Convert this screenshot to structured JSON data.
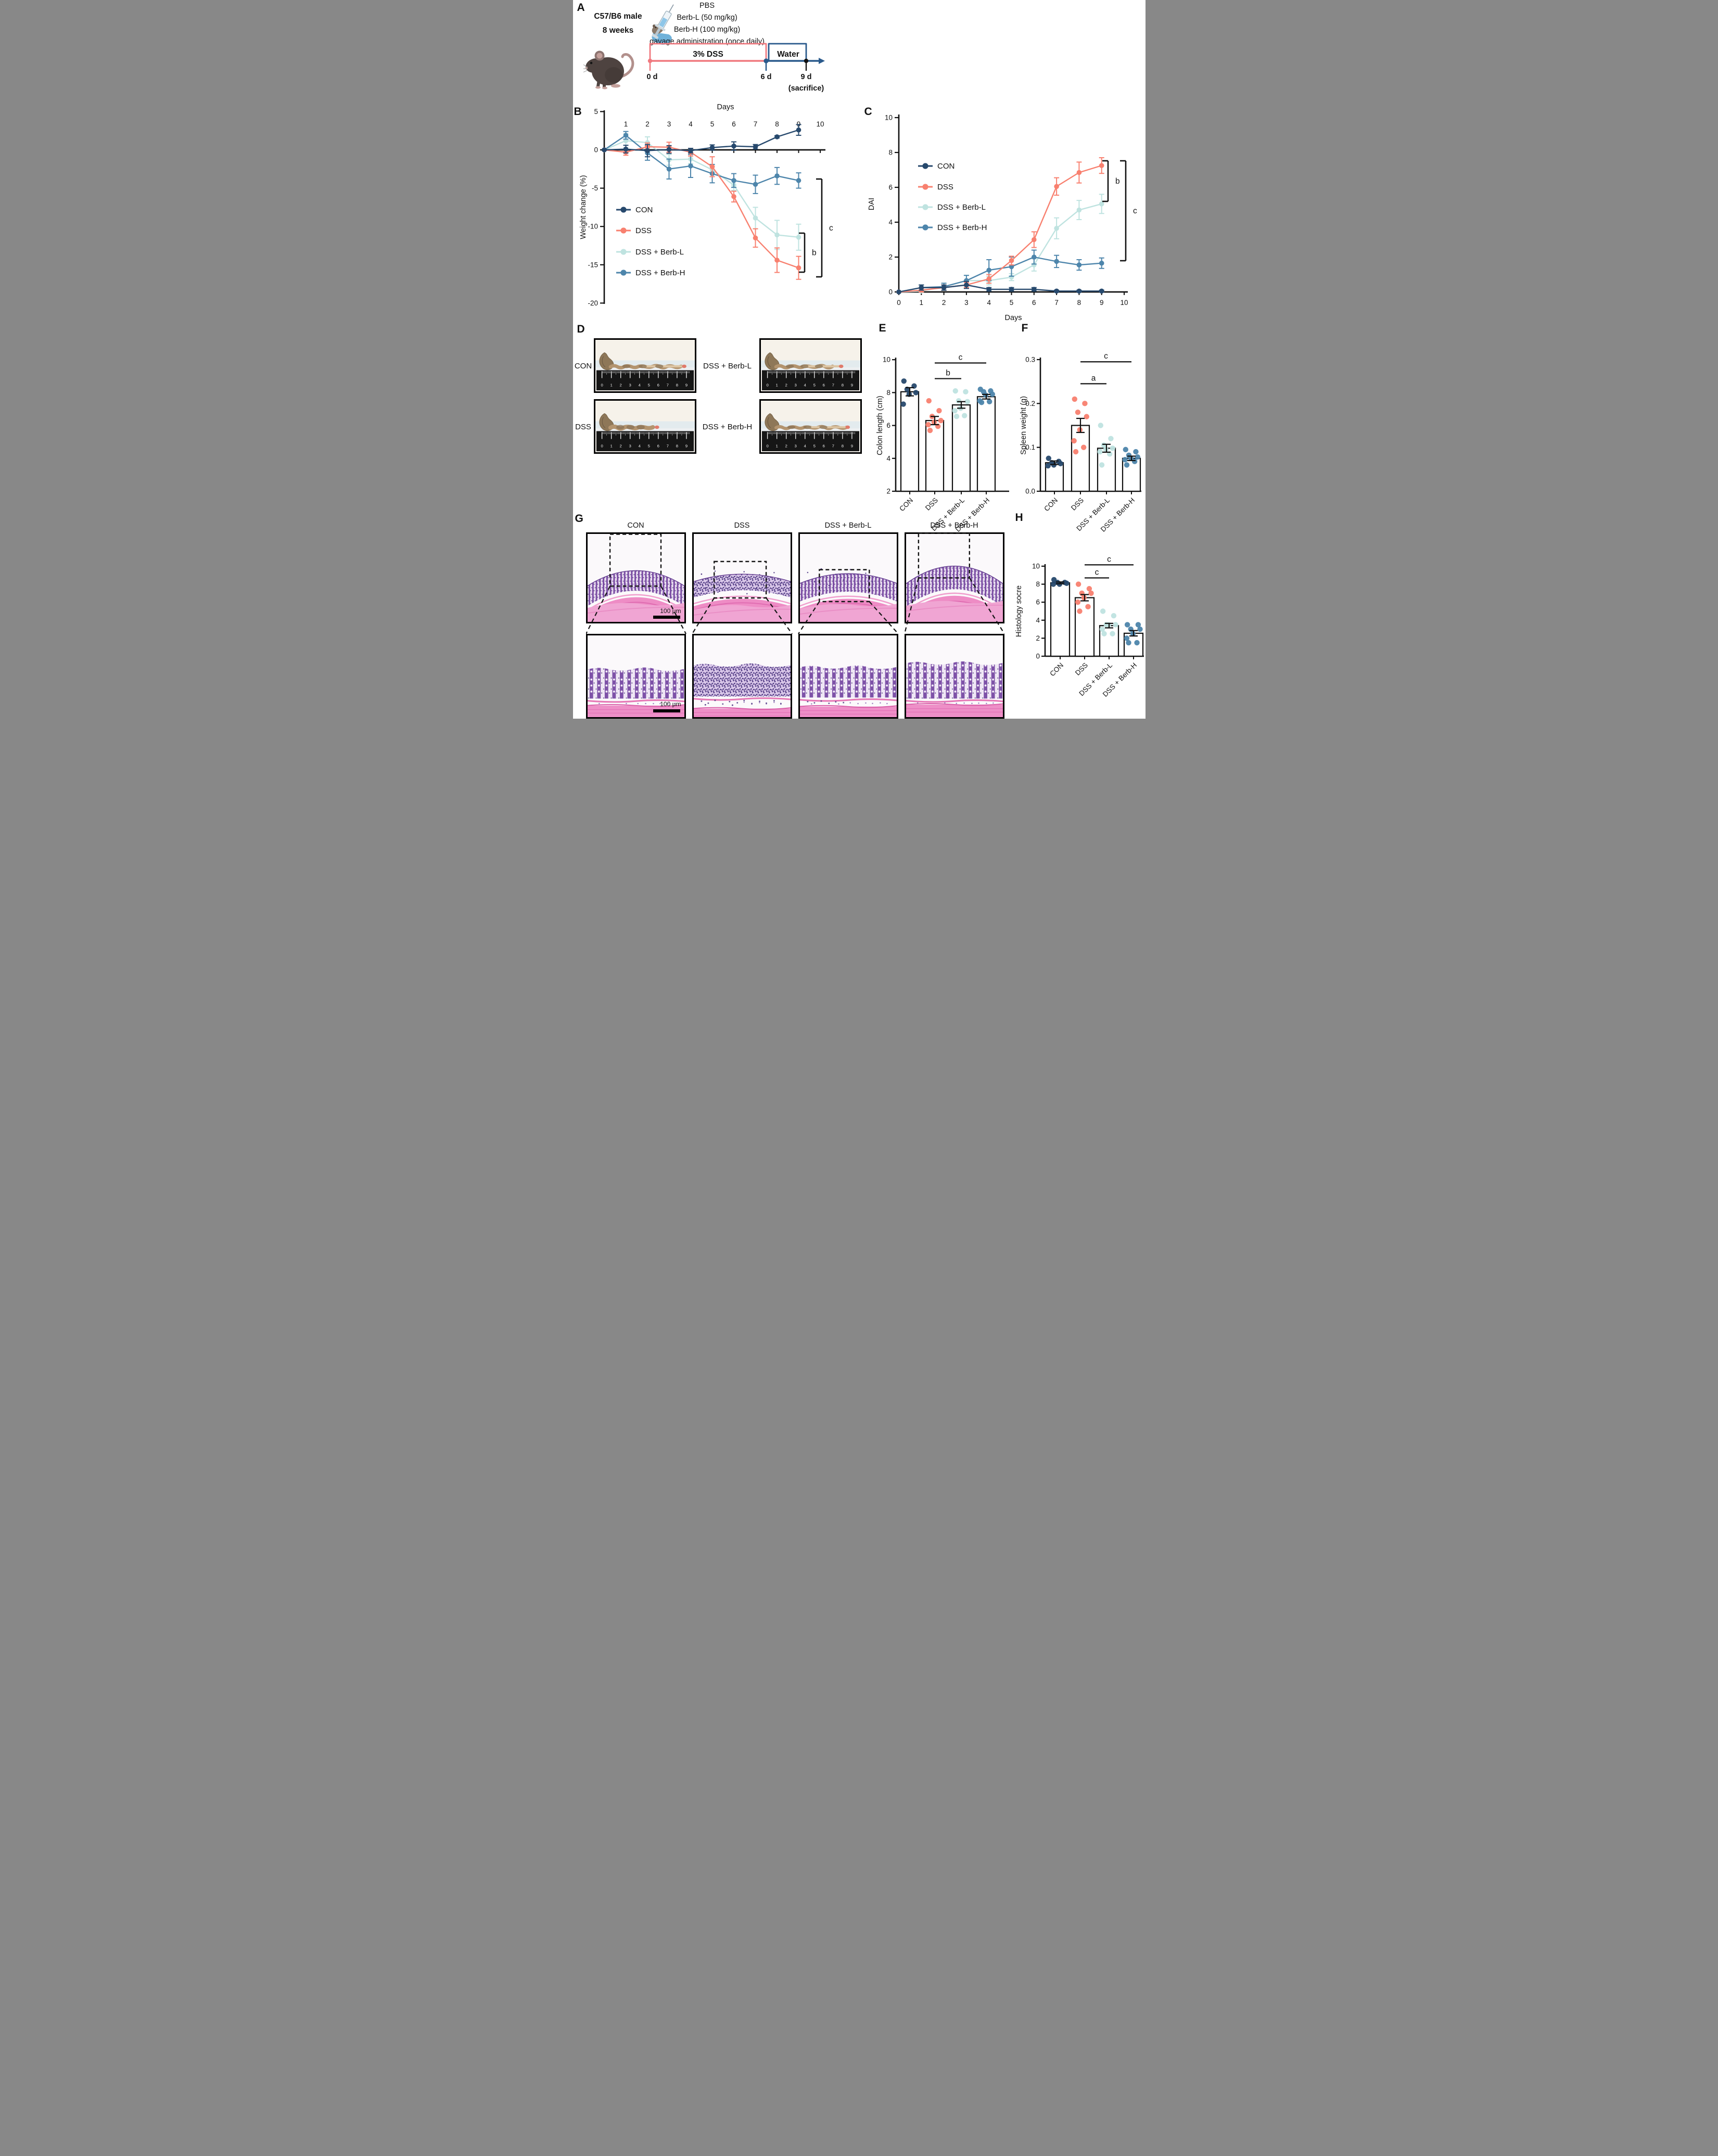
{
  "figure": {
    "panel_labels": {
      "A": "A",
      "B": "B",
      "C": "C",
      "D": "D",
      "E": "E",
      "F": "F",
      "G": "G",
      "H": "H"
    }
  },
  "groups": [
    {
      "name": "CON",
      "color": "#27496d"
    },
    {
      "name": "DSS",
      "color": "#f8806f"
    },
    {
      "name": "DSS + Berb-L",
      "color": "#bfe3e0"
    },
    {
      "name": "DSS + Berb-H",
      "color": "#4d85ab"
    }
  ],
  "panelA": {
    "label": "A",
    "subject_line1": "C57/B6 male",
    "subject_line2": "8 weeks",
    "treatment_lines": [
      "PBS",
      "Berb-L (50 mg/kg)",
      "Berb-H (100 mg/kg)",
      "gavage administration (once daily)"
    ],
    "dss_phase": "3% DSS",
    "water_phase": "Water",
    "t0": "0 d",
    "t6": "6 d",
    "t9": "9 d",
    "sacrifice": "(sacrifice)",
    "dss_color": "#f0797f",
    "water_color": "#2a5a8c"
  },
  "chart_data": [
    {
      "id": "B",
      "type": "line",
      "title": "Days",
      "ylabel": "Weight change (%)",
      "xticks": [
        1,
        2,
        3,
        4,
        5,
        6,
        7,
        8,
        9,
        10
      ],
      "yticks": [
        5,
        0,
        -5,
        -10,
        -15,
        -20
      ],
      "ylim": [
        -20,
        5
      ],
      "x": [
        0,
        1,
        2,
        3,
        4,
        5,
        6,
        7,
        8,
        9
      ],
      "series": [
        {
          "name": "CON",
          "color": "#27496d",
          "values": [
            0,
            0.1,
            -0.1,
            0.05,
            -0.1,
            0.3,
            0.5,
            0.4,
            1.7,
            2.6
          ],
          "err": [
            0.05,
            0.5,
            0.8,
            0.5,
            0.3,
            0.35,
            0.55,
            0.3,
            0.15,
            0.7
          ]
        },
        {
          "name": "DSS",
          "color": "#f8806f",
          "values": [
            0,
            -0.3,
            0.4,
            0.35,
            -0.3,
            -2.2,
            -6.1,
            -11.5,
            -14.4,
            -15.4
          ],
          "err": [
            0.05,
            0.4,
            0.5,
            0.65,
            0.5,
            1.3,
            0.7,
            1.2,
            1.6,
            1.5
          ]
        },
        {
          "name": "DSS + Berb-L",
          "color": "#bfe3e0",
          "values": [
            0,
            1.2,
            0.95,
            -1.3,
            -1.2,
            -2.6,
            -4.6,
            -8.9,
            -11.1,
            -11.4
          ],
          "err": [
            0.05,
            0.9,
            0.75,
            0.7,
            0.6,
            0.5,
            0.7,
            1.4,
            1.9,
            1.7
          ]
        },
        {
          "name": "DSS + Berb-H",
          "color": "#4d85ab",
          "values": [
            0,
            1.9,
            -0.4,
            -2.5,
            -2.1,
            -3.1,
            -4.0,
            -4.5,
            -3.4,
            -4.0
          ],
          "err": [
            0.05,
            0.5,
            0.95,
            1.3,
            1.5,
            1.2,
            0.9,
            1.2,
            1.1,
            1.0
          ]
        }
      ],
      "sig": [
        {
          "label": "b"
        },
        {
          "label": "c"
        }
      ]
    },
    {
      "id": "C",
      "type": "line",
      "xlabel": "Days",
      "ylabel": "DAI",
      "xticks": [
        0,
        1,
        2,
        3,
        4,
        5,
        6,
        7,
        8,
        9,
        10
      ],
      "yticks": [
        0,
        2,
        4,
        6,
        8,
        10
      ],
      "ylim": [
        0,
        10
      ],
      "x": [
        0,
        1,
        2,
        3,
        4,
        5,
        6,
        7,
        8,
        9
      ],
      "series": [
        {
          "name": "CON",
          "color": "#27496d",
          "values": [
            0,
            0.25,
            0.25,
            0.4,
            0.15,
            0.15,
            0.15,
            0.05,
            0.05,
            0.05
          ],
          "err": [
            0,
            0.15,
            0.15,
            0.2,
            0.1,
            0.1,
            0.1,
            0.05,
            0.05,
            0.05
          ]
        },
        {
          "name": "DSS",
          "color": "#f8806f",
          "values": [
            0,
            0.1,
            0.25,
            0.4,
            0.75,
            1.8,
            3.0,
            6.05,
            6.85,
            7.25
          ],
          "err": [
            0,
            0.1,
            0.15,
            0.15,
            0.25,
            0.25,
            0.45,
            0.5,
            0.6,
            0.45
          ]
        },
        {
          "name": "DSS + Berb-L",
          "color": "#bfe3e0",
          "values": [
            0,
            0.05,
            0.3,
            0.65,
            0.65,
            0.85,
            1.55,
            3.65,
            4.7,
            5.05
          ],
          "err": [
            0,
            0.05,
            0.2,
            0.3,
            0.25,
            0.2,
            0.35,
            0.6,
            0.55,
            0.55
          ]
        },
        {
          "name": "DSS + Berb-H",
          "color": "#4d85ab",
          "values": [
            0,
            0.25,
            0.3,
            0.65,
            1.25,
            1.45,
            2.0,
            1.75,
            1.55,
            1.65
          ],
          "err": [
            0,
            0.15,
            0.2,
            0.3,
            0.6,
            0.55,
            0.4,
            0.35,
            0.3,
            0.3
          ]
        }
      ],
      "sig": [
        {
          "label": "b"
        },
        {
          "label": "c"
        }
      ]
    },
    {
      "id": "E",
      "type": "bar",
      "ylabel": "Colon length (cm)",
      "ylim": [
        2,
        10
      ],
      "yticks": [
        2,
        4,
        6,
        8,
        10
      ],
      "categories": [
        "CON",
        "DSS",
        "DSS + Berb-L",
        "DSS + Berb-H"
      ],
      "colors": [
        "#27496d",
        "#f8806f",
        "#bfe3e0",
        "#4d85ab"
      ],
      "means": [
        8.05,
        6.3,
        7.25,
        7.75
      ],
      "sem": [
        0.25,
        0.25,
        0.2,
        0.14
      ],
      "points": [
        [
          8.7,
          8.4,
          8.2,
          8.0,
          7.9,
          7.3
        ],
        [
          7.5,
          6.9,
          6.55,
          6.3,
          6.2,
          6.05,
          5.95,
          5.7
        ],
        [
          8.1,
          8.05,
          7.5,
          7.45,
          7.05,
          6.9,
          6.6,
          6.55
        ],
        [
          8.2,
          8.1,
          8.05,
          7.9,
          7.85,
          7.5,
          7.45,
          7.4
        ]
      ],
      "sig": [
        {
          "label": "b"
        },
        {
          "label": "c"
        }
      ]
    },
    {
      "id": "F",
      "type": "bar",
      "ylabel": "Spleen weight (g)",
      "ylim": [
        0,
        0.3
      ],
      "yticks": [
        0,
        0.1,
        0.2,
        0.3
      ],
      "decimals": 1,
      "categories": [
        "CON",
        "DSS",
        "DSS + Berb-L",
        "DSS + Berb-H"
      ],
      "colors": [
        "#27496d",
        "#f8806f",
        "#bfe3e0",
        "#4d85ab"
      ],
      "means": [
        0.065,
        0.15,
        0.098,
        0.075
      ],
      "sem": [
        0.004,
        0.016,
        0.009,
        0.005
      ],
      "points": [
        [
          0.075,
          0.068,
          0.065,
          0.063,
          0.06,
          0.058
        ],
        [
          0.21,
          0.2,
          0.18,
          0.17,
          0.14,
          0.115,
          0.1,
          0.09
        ],
        [
          0.15,
          0.12,
          0.105,
          0.098,
          0.095,
          0.09,
          0.085,
          0.06
        ],
        [
          0.095,
          0.09,
          0.082,
          0.078,
          0.075,
          0.072,
          0.068,
          0.06
        ]
      ],
      "sig": [
        {
          "label": "a"
        },
        {
          "label": "c"
        }
      ]
    },
    {
      "id": "H",
      "type": "bar",
      "ylabel": "Histology socre",
      "ylim": [
        0,
        10
      ],
      "yticks": [
        0,
        2,
        4,
        6,
        8,
        10
      ],
      "categories": [
        "CON",
        "DSS",
        "DSS + Berb-L",
        "DSS + Berb-H"
      ],
      "colors": [
        "#27496d",
        "#f8806f",
        "#bfe3e0",
        "#4d85ab"
      ],
      "means": [
        8.15,
        6.5,
        3.4,
        2.55
      ],
      "sem": [
        0.1,
        0.35,
        0.25,
        0.3
      ],
      "points": [
        [
          8.5,
          8.2,
          8.2,
          8.1,
          8.0,
          8.0
        ],
        [
          8.0,
          7.5,
          7.0,
          7.0,
          6.5,
          6.0,
          5.5,
          5.0
        ],
        [
          5.0,
          4.5,
          3.5,
          3.5,
          3.5,
          3.0,
          2.5,
          2.5
        ],
        [
          3.5,
          3.5,
          3.0,
          3.0,
          2.5,
          2.0,
          1.5,
          1.5
        ]
      ],
      "sig": [
        {
          "label": "c"
        },
        {
          "label": "c"
        }
      ]
    }
  ],
  "panelD": {
    "label": "D",
    "rows": [
      [
        "CON",
        "DSS + Berb-L"
      ],
      [
        "DSS",
        "DSS + Berb-H"
      ]
    ],
    "ruler_numbers": [
      "0",
      "1",
      "2",
      "3",
      "4",
      "5",
      "6",
      "7",
      "8",
      "9"
    ]
  },
  "panelG": {
    "label": "G",
    "columns": [
      "CON",
      "DSS",
      "DSS + Berb-L",
      "DSS + Berb-H"
    ],
    "scale_bar": "100 μm"
  }
}
